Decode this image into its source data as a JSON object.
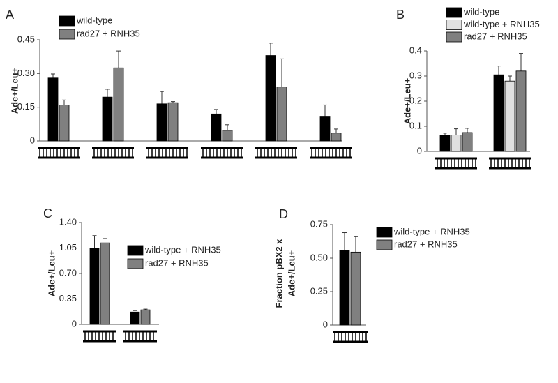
{
  "chart_data": [
    {
      "type": "bar",
      "panel": "A",
      "ylabel": [
        "Ade+/Leu+"
      ],
      "categories": [
        null,
        null,
        null,
        null,
        null,
        null
      ],
      "series": [
        {
          "name": "wild-type",
          "color": "#000000",
          "values": [
            0.28,
            0.195,
            0.165,
            0.12,
            0.38,
            0.11
          ],
          "errors": [
            0.018,
            0.035,
            0.055,
            0.02,
            0.055,
            0.05
          ]
        },
        {
          "name": "rad27 + RNH35",
          "color": "#808080",
          "values": [
            0.16,
            0.325,
            0.17,
            0.047,
            0.24,
            0.035
          ],
          "errors": [
            0.022,
            0.075,
            0.005,
            0.025,
            0.125,
            0.018
          ]
        }
      ],
      "ylim": [
        0,
        0.45
      ],
      "yticks": [
        0,
        0.15,
        {
          "value": 0.3,
          "label": "0.30"
        },
        0.45
      ]
    },
    {
      "type": "bar",
      "panel": "B",
      "ylabel": [
        "Ade+/Leu+"
      ],
      "categories": [
        null,
        null
      ],
      "series": [
        {
          "name": "wild-type",
          "color": "#000000",
          "values": [
            0.065,
            0.305
          ],
          "errors": [
            0.008,
            0.035
          ]
        },
        {
          "name": "wild-type + RNH35",
          "color": "#e0e0e0",
          "values": [
            0.065,
            0.28
          ],
          "errors": [
            0.025,
            0.02
          ]
        },
        {
          "name": "rad27 + RNH35",
          "color": "#808080",
          "values": [
            0.075,
            0.32
          ],
          "errors": [
            0.017,
            0.07
          ]
        }
      ],
      "ylim": [
        0,
        0.4
      ],
      "yticks": [
        0,
        0.1,
        0.2,
        0.3,
        0.4
      ]
    },
    {
      "type": "bar",
      "panel": "C",
      "ylabel": [
        "Ade+/Leu+"
      ],
      "categories": [
        null,
        null
      ],
      "series": [
        {
          "name": "wild-type + RNH35",
          "color": "#000000",
          "values": [
            1.05,
            0.17
          ],
          "errors": [
            0.17,
            0.02
          ]
        },
        {
          "name": "rad27 + RNH35",
          "color": "#808080",
          "values": [
            1.12,
            0.2
          ],
          "errors": [
            0.06,
            0.01
          ]
        }
      ],
      "ylim": [
        0,
        1.4
      ],
      "yticks": [
        0,
        0.35,
        {
          "value": 0.7,
          "label": "0.70"
        },
        1.05,
        {
          "value": 1.4,
          "label": "1.40"
        }
      ]
    },
    {
      "type": "bar",
      "panel": "D",
      "ylabel": [
        "Fraction pBX2 x",
        "Ade+/Leu+"
      ],
      "categories": [
        null
      ],
      "series": [
        {
          "name": "wild-type + RNH35",
          "color": "#000000",
          "values": [
            0.56
          ],
          "errors": [
            0.13
          ]
        },
        {
          "name": "rad27 + RNH35",
          "color": "#808080",
          "values": [
            0.545
          ],
          "errors": [
            0.115
          ]
        }
      ],
      "ylim": [
        0,
        0.75
      ],
      "yticks": [
        0,
        0.25,
        {
          "value": 0.5,
          "label": "0.50"
        },
        0.75
      ]
    }
  ]
}
